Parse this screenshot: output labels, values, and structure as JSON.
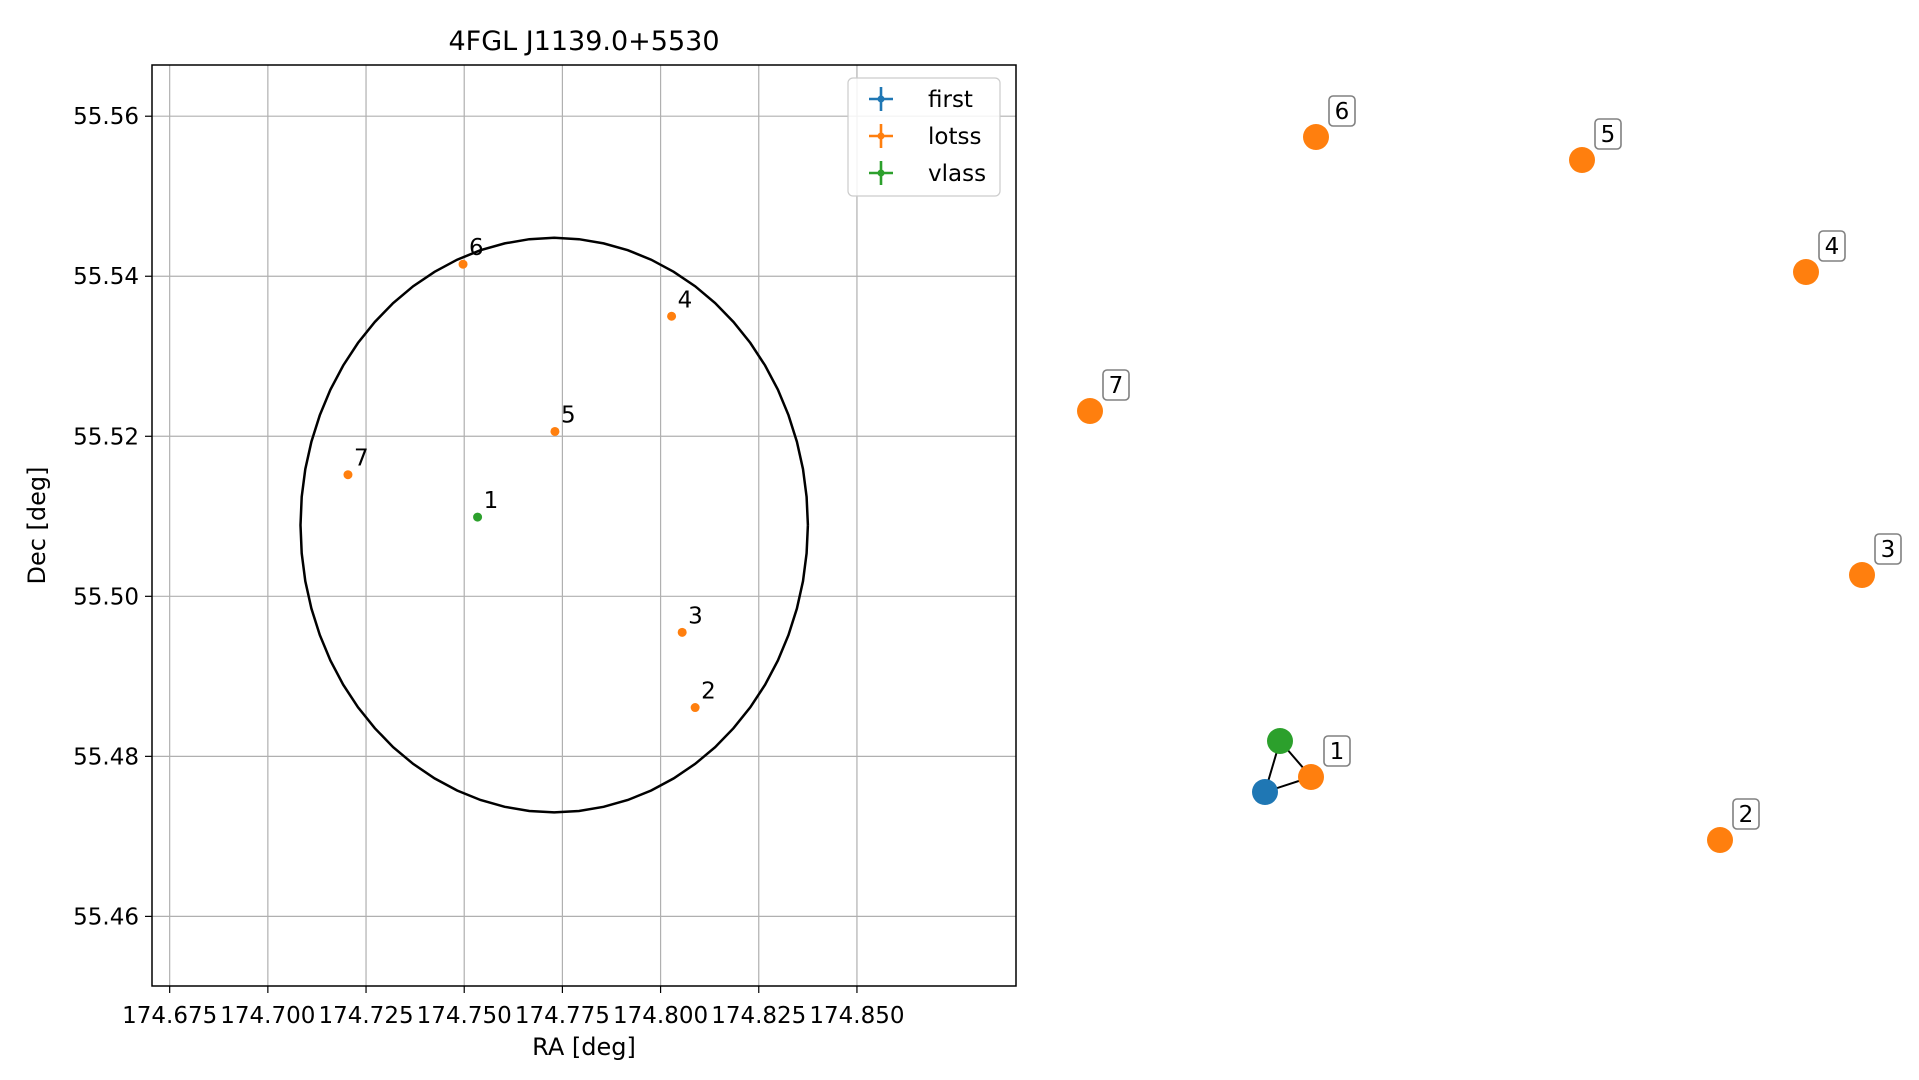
{
  "chart_data": [
    {
      "type": "scatter",
      "title": "4FGL J1139.0+5530",
      "xlabel": "RA [deg]",
      "ylabel": "Dec [deg]",
      "xlim": [
        174.6705,
        174.8905
      ],
      "ylim": [
        55.4513,
        55.5664
      ],
      "xticks": [
        174.675,
        174.7,
        174.725,
        174.75,
        174.775,
        174.8,
        174.825,
        174.85
      ],
      "xtick_labels": [
        "174.675",
        "174.700",
        "174.725",
        "174.750",
        "174.775",
        "174.800",
        "174.825",
        "174.850"
      ],
      "yticks": [
        55.46,
        55.48,
        55.5,
        55.52,
        55.54,
        55.56
      ],
      "ytick_labels": [
        "55.46",
        "55.48",
        "55.50",
        "55.52",
        "55.54",
        "55.56"
      ],
      "grid": true,
      "legend_placement": "top-right",
      "legend": [
        {
          "name": "first",
          "color": "#1f77b4"
        },
        {
          "name": "lotss",
          "color": "#ff7f0e"
        },
        {
          "name": "vlass",
          "color": "#2ca02c"
        }
      ],
      "error_circle": {
        "center": [
          174.7729,
          55.5089
        ],
        "ra_halfwidth": 0.0646,
        "dec_halfwidth": 0.0359
      },
      "series": [
        {
          "name": "lotss",
          "color": "#ff7f0e",
          "points": [
            {
              "label": "2",
              "x": 174.8088,
              "y": 55.4861
            },
            {
              "label": "3",
              "x": 174.8055,
              "y": 55.4955
            },
            {
              "label": "4",
              "x": 174.8028,
              "y": 55.535
            },
            {
              "label": "5",
              "x": 174.7731,
              "y": 55.5206
            },
            {
              "label": "6",
              "x": 174.7497,
              "y": 55.5415
            },
            {
              "label": "7",
              "x": 174.7204,
              "y": 55.5152
            }
          ]
        },
        {
          "name": "vlass",
          "color": "#2ca02c",
          "points": [
            {
              "label": "1",
              "x": 174.7534,
              "y": 55.5099
            }
          ]
        }
      ]
    },
    {
      "type": "scatter",
      "title": "",
      "axes": false,
      "legend": [],
      "nodes": [
        {
          "label": "1",
          "color": "#ff7f0e",
          "labeled": true
        },
        {
          "label": "2",
          "color": "#ff7f0e",
          "labeled": true
        },
        {
          "label": "3",
          "color": "#ff7f0e",
          "labeled": true
        },
        {
          "label": "4",
          "color": "#ff7f0e",
          "labeled": true
        },
        {
          "label": "5",
          "color": "#ff7f0e",
          "labeled": true
        },
        {
          "label": "6",
          "color": "#ff7f0e",
          "labeled": true
        },
        {
          "label": "7",
          "color": "#ff7f0e",
          "labeled": true
        },
        {
          "label": "first",
          "color": "#1f77b4",
          "labeled": false
        },
        {
          "label": "vlass",
          "color": "#2ca02c",
          "labeled": false
        }
      ],
      "edges": [
        [
          "first",
          "1"
        ],
        [
          "first",
          "vlass"
        ],
        [
          "vlass",
          "1"
        ]
      ]
    }
  ]
}
